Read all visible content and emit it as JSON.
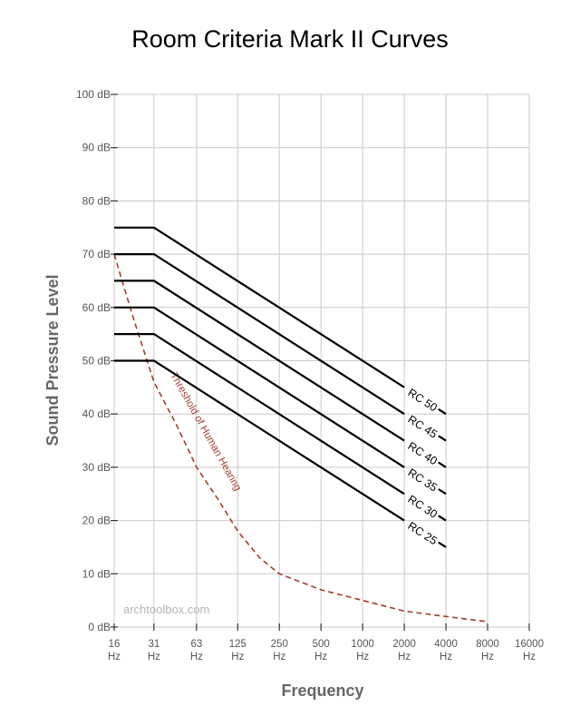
{
  "chart_data": {
    "type": "line",
    "title": "Room Criteria Mark II Curves",
    "xlabel": "Frequency",
    "ylabel": "Sound Pressure Level",
    "x_scale": "log2",
    "x_ticks": [
      16,
      31,
      63,
      125,
      250,
      500,
      1000,
      2000,
      4000,
      8000,
      16000
    ],
    "x_tick_labels": [
      "16",
      "31",
      "63",
      "125",
      "250",
      "500",
      "1000",
      "2000",
      "4000",
      "8000",
      "16000"
    ],
    "x_tick_unit": "Hz",
    "ylim": [
      0,
      100
    ],
    "y_ticks": [
      0,
      10,
      20,
      30,
      40,
      50,
      60,
      70,
      80,
      90,
      100
    ],
    "y_tick_labels": [
      "0 dB",
      "10 dB",
      "20 dB",
      "30 dB",
      "40 dB",
      "50 dB",
      "60 dB",
      "70 dB",
      "80 dB",
      "90 dB",
      "100 dB"
    ],
    "grid": true,
    "series": [
      {
        "name": "RC 50",
        "x": [
          16,
          31,
          2000,
          4000
        ],
        "y": [
          75,
          75,
          45,
          40
        ],
        "color": "#000000",
        "gap_after_index": 2
      },
      {
        "name": "RC 45",
        "x": [
          16,
          31,
          2000,
          4000
        ],
        "y": [
          70,
          70,
          40,
          35
        ],
        "color": "#000000",
        "gap_after_index": 2
      },
      {
        "name": "RC 40",
        "x": [
          16,
          31,
          2000,
          4000
        ],
        "y": [
          65,
          65,
          35,
          30
        ],
        "color": "#000000",
        "gap_after_index": 2
      },
      {
        "name": "RC 35",
        "x": [
          16,
          31,
          2000,
          4000
        ],
        "y": [
          60,
          60,
          30,
          25
        ],
        "color": "#000000",
        "gap_after_index": 2
      },
      {
        "name": "RC 30",
        "x": [
          16,
          31,
          2000,
          4000
        ],
        "y": [
          55,
          55,
          25,
          20
        ],
        "color": "#000000",
        "gap_after_index": 2
      },
      {
        "name": "RC 25",
        "x": [
          16,
          31,
          2000,
          4000
        ],
        "y": [
          50,
          50,
          20,
          15
        ],
        "color": "#000000",
        "gap_after_index": 2
      }
    ],
    "threshold": {
      "name": "Threshold of Human Hearing",
      "style": "dashed",
      "color": "#a0402a",
      "x": [
        16,
        22,
        31,
        45,
        63,
        90,
        125,
        180,
        250,
        500,
        1000,
        2000,
        4000,
        8000
      ],
      "y": [
        70,
        58,
        46,
        38,
        30,
        24,
        18,
        13,
        10,
        7,
        5,
        3,
        2,
        1
      ]
    },
    "watermark": "archtoolbox.com"
  }
}
